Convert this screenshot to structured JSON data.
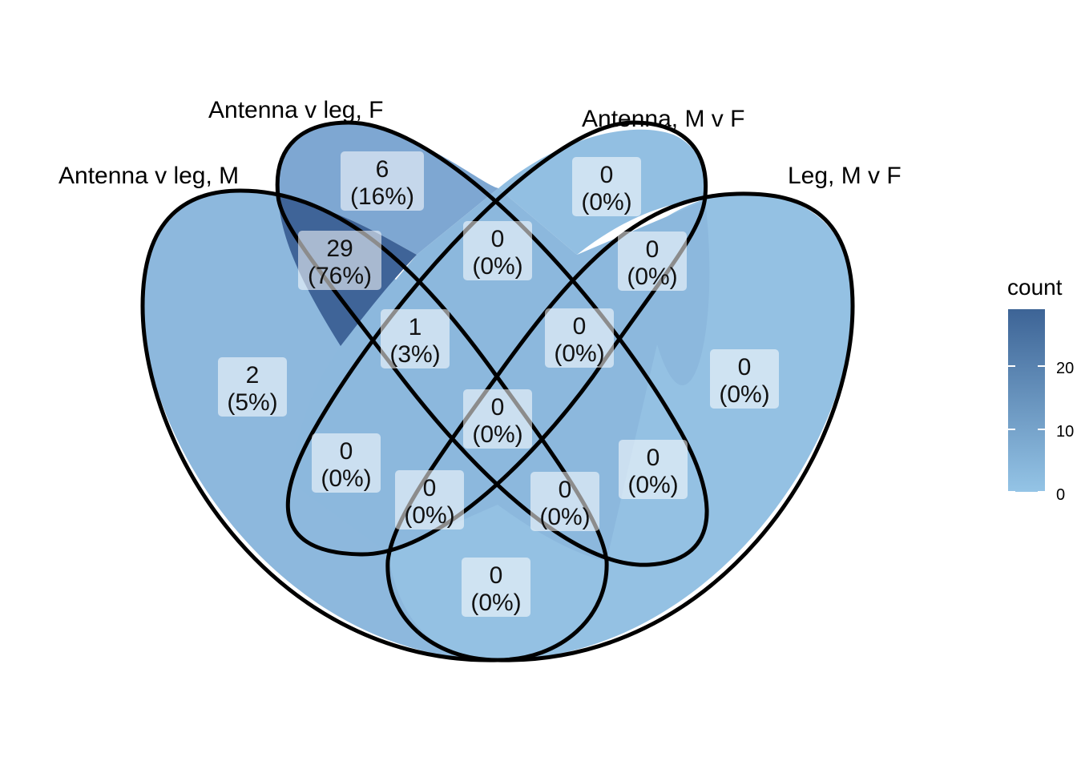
{
  "sets": {
    "antenna_v_leg_m": "Antenna v leg, M",
    "antenna_v_leg_f": "Antenna v leg, F",
    "antenna_m_v_f": "Antenna, M v F",
    "leg_m_v_f": "Leg, M v F"
  },
  "regions": [
    {
      "id": "m_only",
      "count": "2",
      "pct": "(5%)"
    },
    {
      "id": "f_only",
      "count": "6",
      "pct": "(16%)"
    },
    {
      "id": "antm_only",
      "count": "0",
      "pct": "(0%)"
    },
    {
      "id": "leg_only",
      "count": "0",
      "pct": "(0%)"
    },
    {
      "id": "m_f",
      "count": "29",
      "pct": "(76%)"
    },
    {
      "id": "f_antm",
      "count": "0",
      "pct": "(0%)"
    },
    {
      "id": "antm_leg",
      "count": "0",
      "pct": "(0%)"
    },
    {
      "id": "m_f_antm",
      "count": "1",
      "pct": "(3%)"
    },
    {
      "id": "f_antm_leg",
      "count": "0",
      "pct": "(0%)"
    },
    {
      "id": "all_four",
      "count": "0",
      "pct": "(0%)"
    },
    {
      "id": "m_leg",
      "count": "0",
      "pct": "(0%)"
    },
    {
      "id": "m_antm",
      "count": "0",
      "pct": "(0%)"
    },
    {
      "id": "f_leg",
      "count": "0",
      "pct": "(0%)"
    },
    {
      "id": "m_f_leg",
      "count": "0",
      "pct": "(0%)"
    },
    {
      "id": "m_antm_leg",
      "count": "0",
      "pct": "(0%)"
    },
    {
      "id": "f_only_leg_side",
      "count": "0",
      "pct": "(0%)"
    }
  ],
  "legend": {
    "title": "count",
    "ticks": [
      "0",
      "10",
      "20"
    ],
    "scale_min": 0,
    "scale_max": 29,
    "color_low": "#94c4e6",
    "color_high": "#3d6496"
  },
  "colors": {
    "outline": "#000000",
    "base_fill": "#8db8dd"
  }
}
